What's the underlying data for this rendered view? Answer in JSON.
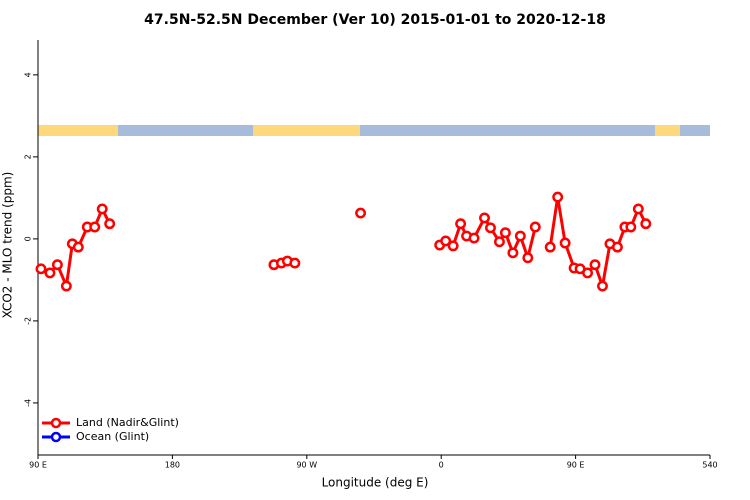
{
  "chart_data": {
    "type": "line",
    "title": "47.5N-52.5N December (Ver 10)   2015-01-01 to 2020-12-18",
    "x_label": "Longitude (deg E)",
    "y_label": "XCO2 - MLO trend (ppm)",
    "xlim": [
      90,
      540
    ],
    "xticks": [
      {
        "value": 90,
        "label": "90 E"
      },
      180,
      {
        "value": 270,
        "label": "90 W"
      },
      {
        "value": 360,
        "label": "0"
      },
      {
        "value": 450,
        "label": "90 E"
      },
      540
    ],
    "ylim": [
      -5.27,
      4.85
    ],
    "yticks": [
      -4,
      -2,
      0,
      2,
      4
    ],
    "legend": "bottom-left",
    "series": [
      {
        "name": "Land (Nadir&Glint)",
        "color": "#ff0000",
        "x": [
          92,
          98,
          103,
          109,
          113,
          117,
          123,
          128,
          133,
          138,
          null,
          248,
          253,
          257,
          262,
          null,
          306,
          null,
          359,
          363,
          368,
          373,
          377,
          382,
          389,
          393,
          399,
          403,
          408,
          413,
          418,
          423,
          null,
          433,
          438,
          443,
          449,
          453,
          458,
          463,
          468,
          473,
          478,
          483,
          487,
          492,
          497
        ],
        "values": [
          -0.73,
          -0.83,
          -0.63,
          -1.15,
          -0.12,
          -0.2,
          0.29,
          0.29,
          0.73,
          0.37,
          null,
          -0.63,
          -0.59,
          -0.54,
          -0.59,
          null,
          0.63,
          null,
          -0.15,
          -0.05,
          -0.17,
          0.37,
          0.07,
          0.02,
          0.51,
          0.27,
          -0.07,
          0.15,
          -0.34,
          0.07,
          -0.46,
          0.29,
          null,
          -0.2,
          1.02,
          -0.1,
          -0.71,
          -0.73,
          -0.83,
          -0.63,
          -1.15,
          -0.12,
          -0.2,
          0.29,
          0.29,
          0.73,
          0.37
        ]
      },
      {
        "name": "Ocean (Glint)",
        "color": "#0000ff",
        "x": [],
        "values": []
      }
    ]
  }
}
